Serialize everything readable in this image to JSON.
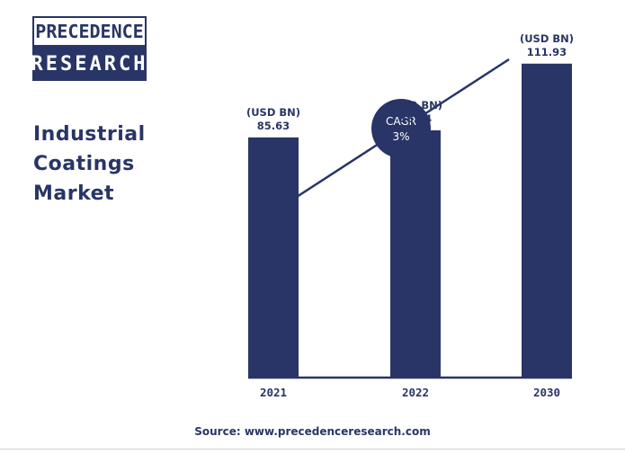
{
  "logo": {
    "line1": "PRECEDENCE",
    "line2": "RESEARCH"
  },
  "title_lines": [
    "Industrial",
    "Coatings",
    "Market"
  ],
  "source": "Source: www.precedenceresearch.com",
  "cagr": {
    "label": "CAGR",
    "value": "3%"
  },
  "colors": {
    "primary": "#283566"
  },
  "chart_data": {
    "type": "bar",
    "categories": [
      "2021",
      "2022",
      "2030"
    ],
    "values": [
      85.63,
      88.14,
      111.93
    ],
    "value_labels": [
      "85.63",
      "88.14",
      "111.93"
    ],
    "unit_label": "(USD BN)",
    "ylim": [
      0,
      125
    ],
    "grid": false,
    "legend": "none"
  }
}
